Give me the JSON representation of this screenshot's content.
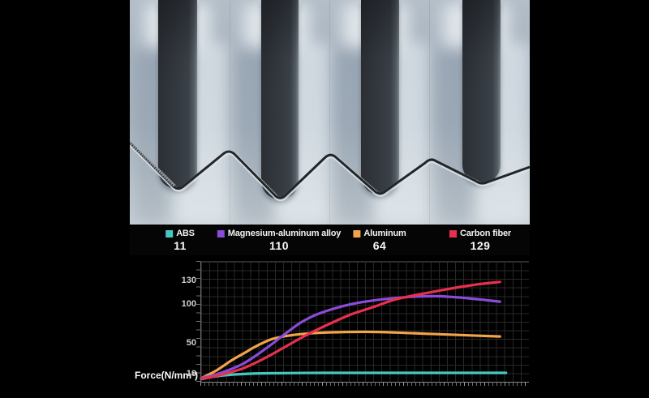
{
  "chart_data": {
    "type": "line",
    "title": "",
    "xlabel": "",
    "ylabel": "Force(N/mm²)",
    "yticks": [
      130,
      100,
      50,
      10
    ],
    "ylim": [
      0,
      140
    ],
    "grid": true,
    "legend_position": "top",
    "series": [
      {
        "name": "ABS",
        "value_label": "11",
        "peak_force": 11,
        "color": "#45c8c0",
        "points": [
          [
            0,
            3
          ],
          [
            4,
            6
          ],
          [
            8,
            8
          ],
          [
            14,
            9.5
          ],
          [
            22,
            10.5
          ],
          [
            40,
            11
          ],
          [
            60,
            11
          ],
          [
            80,
            11
          ],
          [
            101,
            11
          ]
        ]
      },
      {
        "name": "Magnesium-aluminum alloy",
        "value_label": "110",
        "peak_force": 110,
        "color": "#8a4bd8",
        "points": [
          [
            0,
            4
          ],
          [
            5,
            9
          ],
          [
            10,
            16
          ],
          [
            14,
            23
          ],
          [
            18,
            33
          ],
          [
            23,
            47
          ],
          [
            28,
            62
          ],
          [
            33,
            76
          ],
          [
            38,
            86
          ],
          [
            44,
            94
          ],
          [
            50,
            100
          ],
          [
            57,
            104.5
          ],
          [
            64,
            107.5
          ],
          [
            71,
            109.5
          ],
          [
            78,
            110
          ],
          [
            85,
            108.5
          ],
          [
            92,
            106
          ],
          [
            99,
            103
          ]
        ]
      },
      {
        "name": "Aluminum",
        "value_label": "64",
        "peak_force": 64,
        "color": "#f2a44a",
        "points": [
          [
            0,
            4
          ],
          [
            5,
            14
          ],
          [
            10,
            27
          ],
          [
            14,
            36
          ],
          [
            18,
            45
          ],
          [
            23,
            54
          ],
          [
            28,
            58.5
          ],
          [
            33,
            61
          ],
          [
            38,
            62.5
          ],
          [
            45,
            63.5
          ],
          [
            55,
            64
          ],
          [
            65,
            63
          ],
          [
            75,
            61.5
          ],
          [
            85,
            60
          ],
          [
            99,
            58
          ]
        ]
      },
      {
        "name": "Carbon fiber",
        "value_label": "129",
        "peak_force": 129,
        "color": "#e8304e",
        "points": [
          [
            0,
            3.5
          ],
          [
            5,
            7
          ],
          [
            10,
            12
          ],
          [
            14,
            17
          ],
          [
            18,
            24
          ],
          [
            23,
            34
          ],
          [
            28,
            45
          ],
          [
            33,
            56
          ],
          [
            38,
            66
          ],
          [
            44,
            77
          ],
          [
            50,
            87
          ],
          [
            57,
            96
          ],
          [
            64,
            105.5
          ],
          [
            71,
            111.5
          ],
          [
            78,
            116.5
          ],
          [
            85,
            121.5
          ],
          [
            92,
            125.5
          ],
          [
            99,
            128.5
          ]
        ]
      }
    ]
  }
}
